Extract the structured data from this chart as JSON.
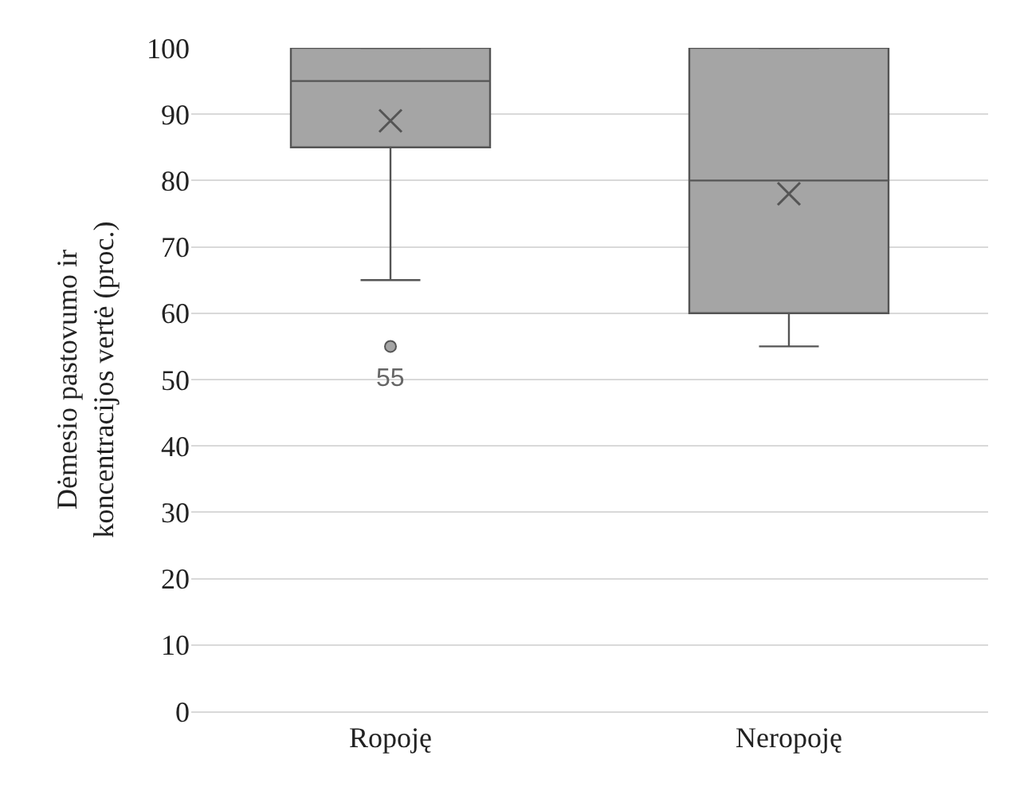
{
  "chart_data": {
    "type": "box",
    "ylabel": "Dėmesio pastovumo ir\nkoncentracijos vertė (proc.)",
    "categories": [
      "Ropoję",
      "Neropoję"
    ],
    "boxes": [
      {
        "low": 65,
        "q1": 85,
        "median": 95,
        "q3": 100,
        "high": 100,
        "mean": 89,
        "outliers": [
          55
        ]
      },
      {
        "low": 55,
        "q1": 60,
        "median": 80,
        "q3": 100,
        "high": 100,
        "mean": 78
      }
    ],
    "color": "#a5a5a5",
    "annotations": [
      "55"
    ],
    "ylim": [
      0,
      100
    ],
    "yticks": [
      0,
      10,
      20,
      30,
      40,
      50,
      60,
      70,
      80,
      90,
      100
    ],
    "grid": "y"
  }
}
